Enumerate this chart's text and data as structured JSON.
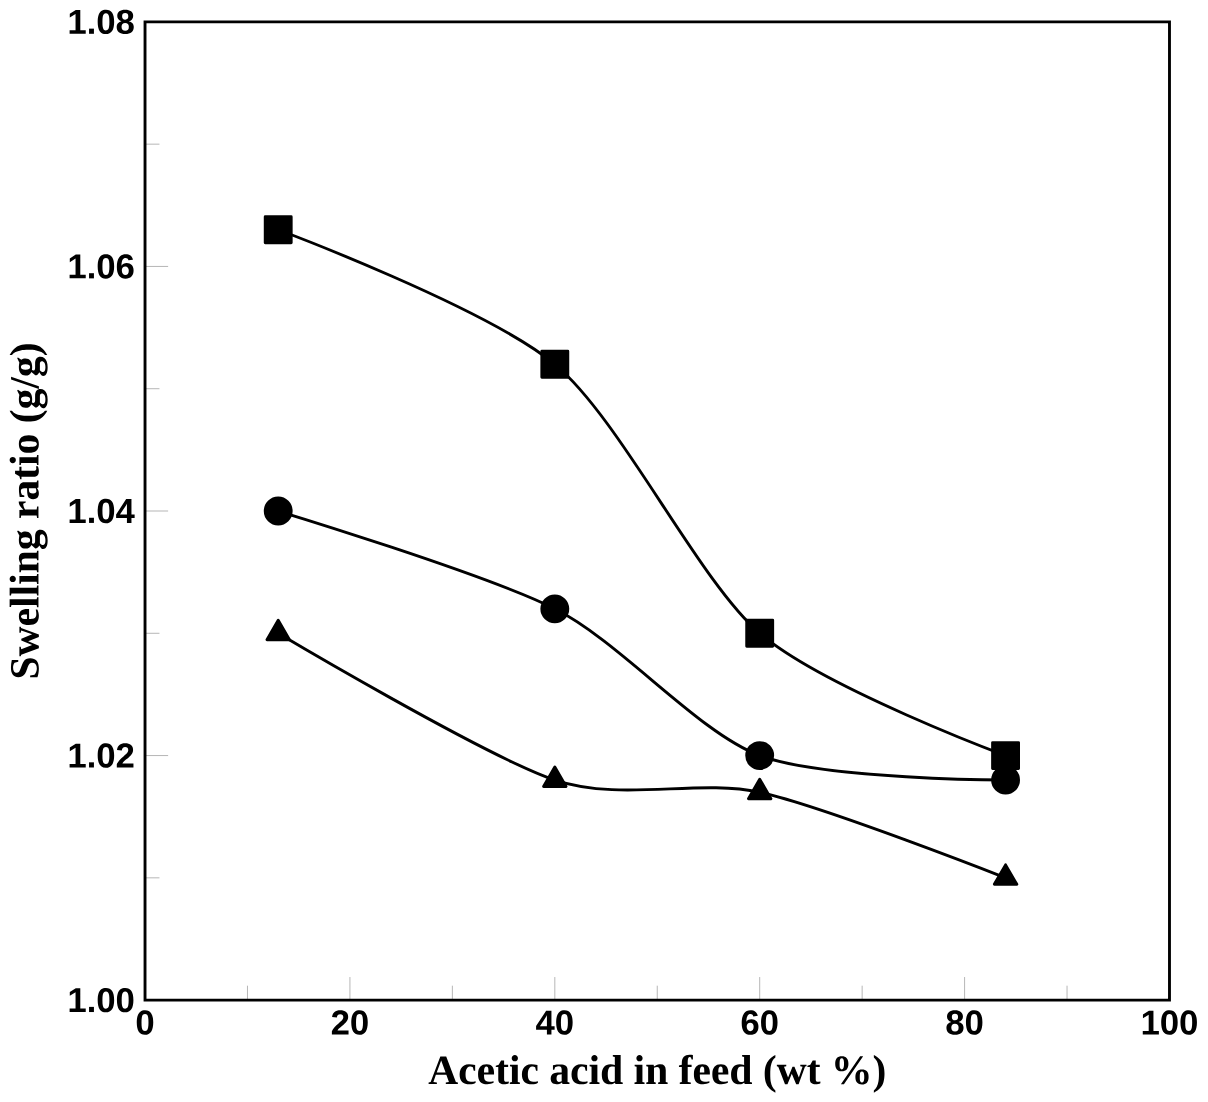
{
  "chart_data": {
    "type": "line",
    "xlabel": "Acetic acid in feed (wt %)",
    "ylabel": "Swelling ratio (g/g)",
    "x": [
      13,
      40,
      60,
      84
    ],
    "series": [
      {
        "color": "#000000",
        "marker": "square",
        "values": [
          1.063,
          1.052,
          1.03,
          1.02
        ]
      },
      {
        "color": "#000000",
        "marker": "circle",
        "values": [
          1.04,
          1.032,
          1.02,
          1.018
        ]
      },
      {
        "color": "#000000",
        "marker": "triangle",
        "values": [
          1.03,
          1.018,
          1.017,
          1.01
        ]
      }
    ],
    "xlim": [
      0,
      100
    ],
    "xticks": [
      0,
      20,
      40,
      60,
      80,
      100
    ],
    "ylim": [
      1.0,
      1.08
    ],
    "yticks": [
      {
        "value": 1.0,
        "label": "1.00"
      },
      {
        "value": 1.02,
        "label": "1.02"
      },
      {
        "value": 1.04,
        "label": "1.04"
      },
      {
        "value": 1.06,
        "label": "1.06"
      },
      {
        "value": 1.08,
        "label": "1.08"
      }
    ],
    "line_style": "solid"
  }
}
